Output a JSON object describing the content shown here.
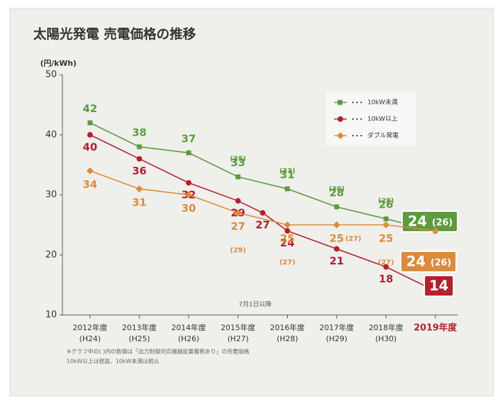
{
  "chart_data": {
    "type": "line",
    "title": "太陽光発電 売電価格の推移",
    "y_label": "(円/kWh)",
    "ylim": [
      10,
      50
    ],
    "yticks": [
      10,
      20,
      30,
      40,
      50
    ],
    "xlim": [
      2011.44,
      2019.45
    ],
    "xticks": [
      {
        "value": 2012,
        "label": "2012年度"
      },
      {
        "value": 2013,
        "label": "2013年度"
      },
      {
        "value": 2014,
        "label": "2014年度"
      },
      {
        "value": 2015,
        "label": "2015年度"
      },
      {
        "value": 2016,
        "label": "2016年度"
      },
      {
        "value": 2017,
        "label": "2017年度"
      },
      {
        "value": 2018,
        "label": "2018年度"
      },
      {
        "value": 2019,
        "label": "2019年度"
      }
    ],
    "xtick_notes": [
      "(H24)",
      "(H25)",
      "(H26)",
      "(H27)",
      "(H28)",
      "(H29)",
      "(H30)",
      null
    ],
    "annotation": "7月1日以降",
    "footnotes": [
      "※グラフ中の( )内の数値は「出力制御対応機器設置義務あり」の売電価格",
      "10kW以上は税抜、10kW未満は税込"
    ],
    "series": [
      {
        "name": "10kW未満",
        "color": "#5e9a3e",
        "x": [
          2012,
          2013,
          2014,
          2015,
          2016,
          2017,
          2018,
          2019
        ],
        "values": [
          42,
          38,
          37,
          33,
          31,
          28,
          26,
          24
        ],
        "paren_labels": [
          null,
          null,
          null,
          "(35)",
          "(33)",
          "(30)",
          "(28)",
          "(26)"
        ]
      },
      {
        "name": "10kW以上",
        "color": "#b3202e",
        "x": [
          2012,
          2013,
          2014,
          2015,
          2015.5,
          2016,
          2017,
          2018,
          2019
        ],
        "values": [
          40,
          36,
          32,
          29,
          27,
          24,
          21,
          18,
          14
        ],
        "paren_labels": [
          null,
          null,
          null,
          null,
          null,
          null,
          null,
          null,
          null
        ]
      },
      {
        "name": "ダブル発電",
        "color": "#d98c3c",
        "x": [
          2012,
          2013,
          2014,
          2015,
          2016,
          2017,
          2018,
          2019
        ],
        "values": [
          34,
          31,
          30,
          27,
          25,
          25,
          25,
          24
        ],
        "paren_labels": [
          null,
          null,
          null,
          "(29)",
          "(27)",
          "(27)",
          "(27)",
          "(26)"
        ]
      }
    ]
  }
}
